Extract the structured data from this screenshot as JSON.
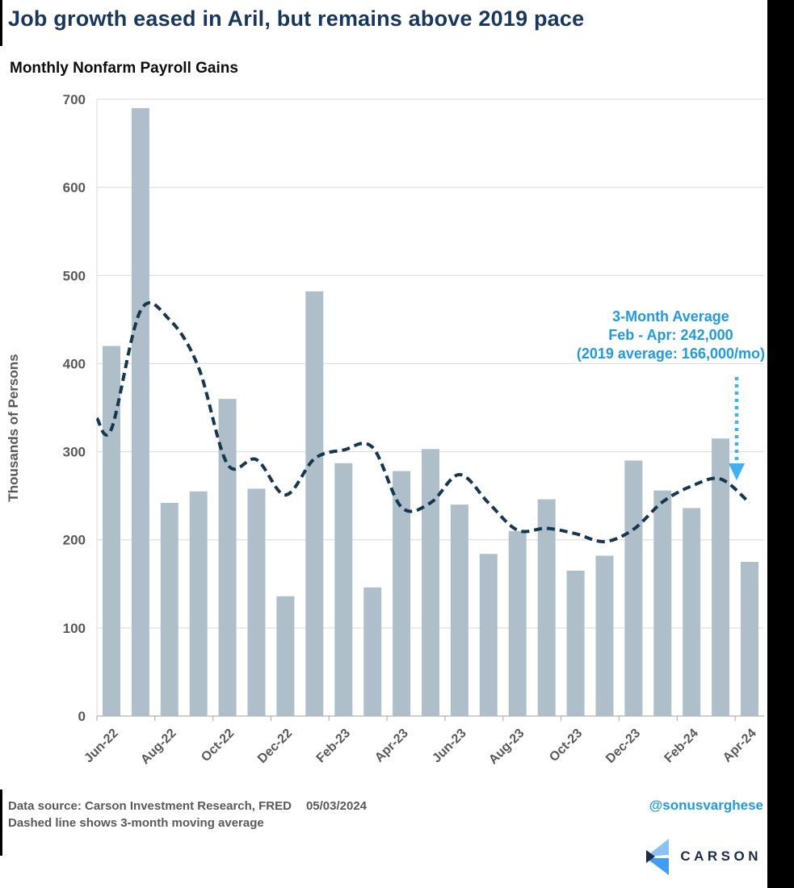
{
  "header": {
    "title": "Job growth eased in Aril, but remains above 2019 pace",
    "subtitle": "Monthly Nonfarm Payroll Gains"
  },
  "chart_data": {
    "type": "bar",
    "title": "Monthly Nonfarm Payroll Gains",
    "xlabel": "",
    "ylabel": "Thousands of Persons",
    "ylim": [
      0,
      700
    ],
    "ytick_step": 100,
    "grid": true,
    "legend_position": "none",
    "categories": [
      "Jun-22",
      "Jul-22",
      "Aug-22",
      "Sep-22",
      "Oct-22",
      "Nov-22",
      "Dec-22",
      "Jan-23",
      "Feb-23",
      "Mar-23",
      "Apr-23",
      "May-23",
      "Jun-23",
      "Jul-23",
      "Aug-23",
      "Sep-23",
      "Oct-23",
      "Nov-23",
      "Dec-23",
      "Jan-24",
      "Feb-24",
      "Mar-24",
      "Apr-24"
    ],
    "xtick_labels": [
      "Jun-22",
      "Aug-22",
      "Oct-22",
      "Dec-22",
      "Feb-23",
      "Apr-23",
      "Jun-23",
      "Aug-23",
      "Oct-23",
      "Dec-23",
      "Feb-24",
      "Apr-24"
    ],
    "series": [
      {
        "name": "Monthly nonfarm payroll gains (thousands)",
        "type": "bar",
        "values": [
          420,
          690,
          242,
          255,
          360,
          258,
          136,
          482,
          287,
          146,
          278,
          303,
          240,
          184,
          210,
          246,
          165,
          182,
          290,
          256,
          236,
          315,
          175
        ]
      },
      {
        "name": "3-month moving average",
        "type": "dashed-line",
        "edge_start_value": 338,
        "values": [
          326,
          460,
          450,
          396,
          286,
          291,
          251,
          292,
          302,
          305,
          237,
          242,
          274,
          242,
          211,
          213,
          207,
          198,
          212,
          243,
          261,
          269,
          242
        ]
      }
    ],
    "annotation": {
      "lines": [
        "3-Month Average",
        "Feb - Apr: 242,000",
        "(2019 average: 166,000/mo)"
      ],
      "arrow": "dotted-down-arrow"
    }
  },
  "footer": {
    "source_label": "Data source: Carson Investment Research, FRED",
    "date": "05/03/2024",
    "note_line": "Dashed line shows 3-month moving average",
    "handle": "@sonusvarghese",
    "logo_text": "CARSON"
  },
  "colors": {
    "title_navy": "#17375c",
    "bar": "#aebfca",
    "ma_line": "#143850",
    "axis_text": "#595959",
    "gridline": "#d9d9d9",
    "axis_line": "#bfbfbf",
    "annotation_blue": "#1e9be5",
    "arrow_blue": "#3fb0f2",
    "logo_navy": "#1b2b4d",
    "logo_light_blue": "#8ac2f4",
    "logo_bright_blue": "#3f9df3"
  }
}
